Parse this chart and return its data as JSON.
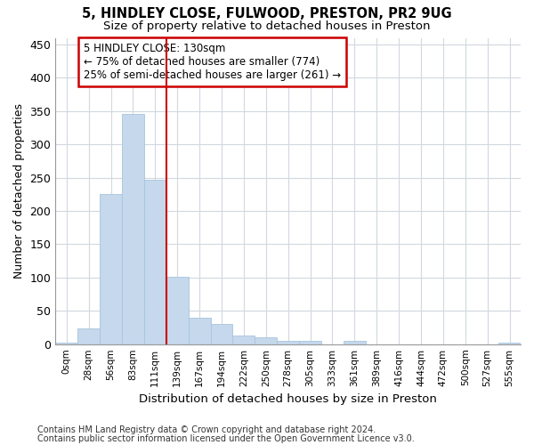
{
  "title1": "5, HINDLEY CLOSE, FULWOOD, PRESTON, PR2 9UG",
  "title2": "Size of property relative to detached houses in Preston",
  "xlabel": "Distribution of detached houses by size in Preston",
  "ylabel": "Number of detached properties",
  "footnote1": "Contains HM Land Registry data © Crown copyright and database right 2024.",
  "footnote2": "Contains public sector information licensed under the Open Government Licence v3.0.",
  "bar_labels": [
    "0sqm",
    "28sqm",
    "56sqm",
    "83sqm",
    "111sqm",
    "139sqm",
    "167sqm",
    "194sqm",
    "222sqm",
    "250sqm",
    "278sqm",
    "305sqm",
    "333sqm",
    "361sqm",
    "389sqm",
    "416sqm",
    "444sqm",
    "472sqm",
    "500sqm",
    "527sqm",
    "555sqm"
  ],
  "bar_values": [
    2,
    24,
    226,
    346,
    247,
    101,
    40,
    30,
    13,
    10,
    5,
    5,
    0,
    5,
    0,
    0,
    0,
    0,
    0,
    0,
    2
  ],
  "bar_color": "#c5d8ec",
  "bar_edge_color": "#a8c4dc",
  "grid_color": "#d0d8e0",
  "vline_x": 4.5,
  "vline_color": "#cc0000",
  "annotation_text1": "5 HINDLEY CLOSE: 130sqm",
  "annotation_text2": "← 75% of detached houses are smaller (774)",
  "annotation_text3": "25% of semi-detached houses are larger (261) →",
  "ylim": [
    0,
    460
  ],
  "yticks": [
    0,
    50,
    100,
    150,
    200,
    250,
    300,
    350,
    400,
    450
  ],
  "bg_color": "#ffffff",
  "plot_bg_color": "#ffffff"
}
